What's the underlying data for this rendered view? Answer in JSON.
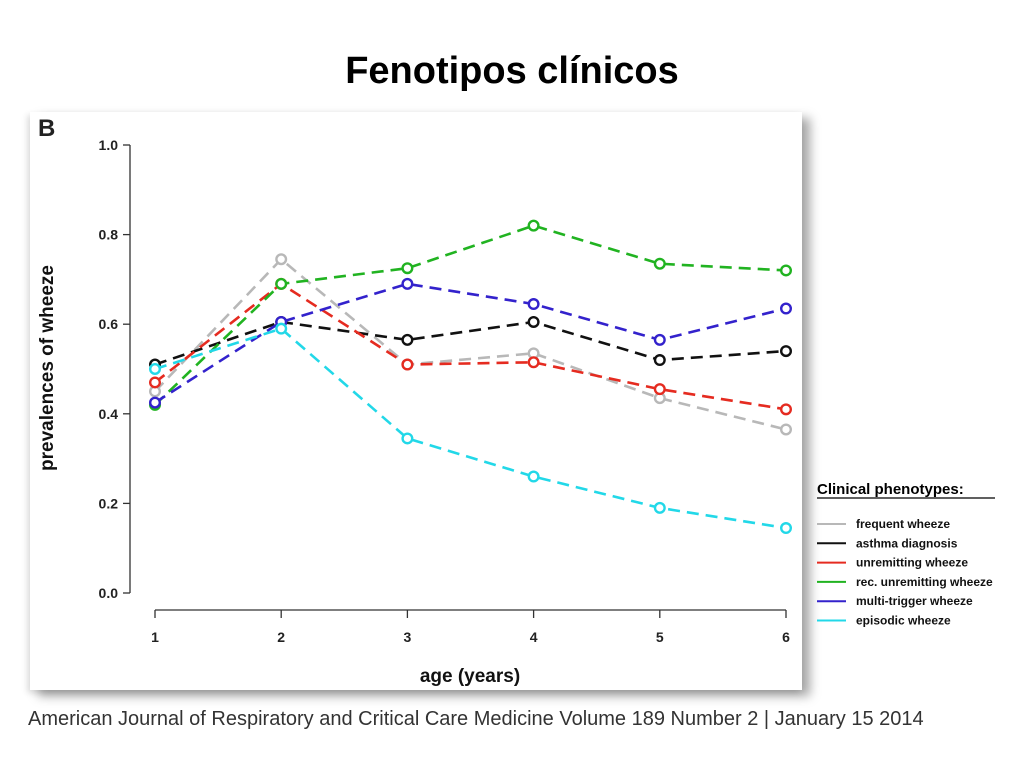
{
  "slide": {
    "title": "Fenotipos clínicos",
    "panel_label": "B",
    "citation": "American Journal of Respiratory and Critical Care Medicine Volume 189 Number 2 | January 15 2014"
  },
  "chart_data": {
    "type": "line",
    "title": "",
    "xlabel": "age (years)",
    "ylabel": "prevalences of wheeze",
    "x": [
      1,
      2,
      3,
      4,
      5,
      6
    ],
    "xlim": [
      1,
      6
    ],
    "ylim": [
      0,
      1
    ],
    "yticks": [
      "0.0",
      "0.2",
      "0.4",
      "0.6",
      "0.8",
      "1.0"
    ],
    "xticks": [
      "1",
      "2",
      "3",
      "4",
      "5",
      "6"
    ],
    "grid": false,
    "legend_position": "right",
    "legend_title": "Clinical phenotypes:",
    "series": [
      {
        "name": "frequent wheeze",
        "color": "#b8b8b8",
        "values": [
          0.45,
          0.745,
          0.51,
          0.535,
          0.435,
          0.365
        ]
      },
      {
        "name": "asthma diagnosis",
        "color": "#111111",
        "values": [
          0.51,
          0.605,
          0.565,
          0.605,
          0.52,
          0.54
        ]
      },
      {
        "name": "unremitting wheeze",
        "color": "#e52b20",
        "values": [
          0.47,
          0.69,
          0.51,
          0.515,
          0.455,
          0.41
        ]
      },
      {
        "name": "rec. unremitting wheeze",
        "color": "#21b321",
        "values": [
          0.42,
          0.69,
          0.725,
          0.82,
          0.735,
          0.72
        ]
      },
      {
        "name": "multi-trigger wheeze",
        "color": "#3322cc",
        "values": [
          0.425,
          0.605,
          0.69,
          0.645,
          0.565,
          0.635
        ]
      },
      {
        "name": "episodic wheeze",
        "color": "#22d8e8",
        "values": [
          0.5,
          0.59,
          0.345,
          0.26,
          0.19,
          0.145
        ]
      }
    ]
  }
}
